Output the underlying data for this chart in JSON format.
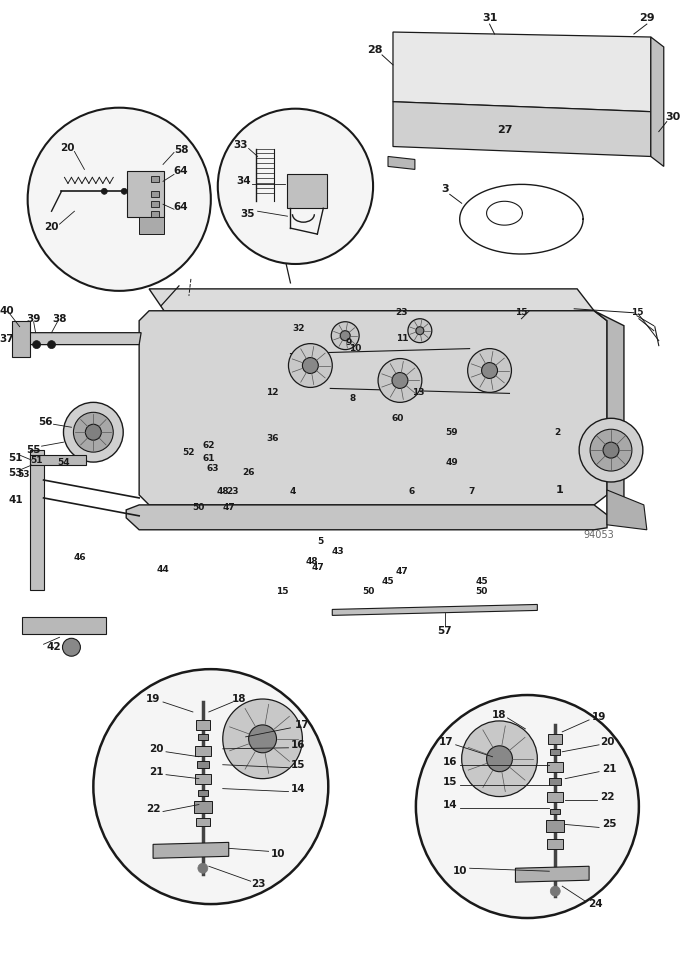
{
  "bg_color": "#ffffff",
  "line_color": "#1a1a1a",
  "fig_width": 6.8,
  "fig_height": 9.63,
  "watermark": "94053"
}
